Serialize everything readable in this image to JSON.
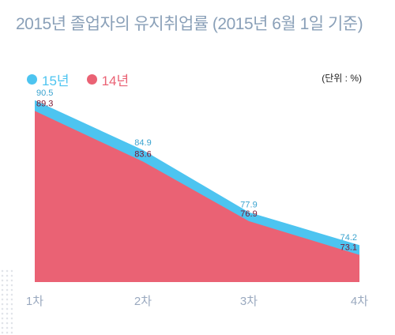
{
  "title": "2015년 졸업자의 유지취업률 (2015년 6월 1일 기준)",
  "unit_label": "(단위 : %)",
  "colors": {
    "series_15": "#4dc4f0",
    "series_14": "#ea6274",
    "title": "#8aa0b8",
    "axis_text": "#9aa9bf"
  },
  "legend": [
    {
      "name": "15년",
      "color": "#4dc4f0"
    },
    {
      "name": "14년",
      "color": "#ea6274"
    }
  ],
  "chart_data": {
    "type": "area",
    "title": "2015년 졸업자의 유지취업률 (2015년 6월 1일 기준)",
    "categories": [
      "1차",
      "2차",
      "3차",
      "4차"
    ],
    "series": [
      {
        "name": "15년",
        "values": [
          90.5,
          84.9,
          77.9,
          74.2
        ]
      },
      {
        "name": "14년",
        "values": [
          89.3,
          83.6,
          76.9,
          73.1
        ]
      }
    ],
    "ylim": [
      68,
      92
    ],
    "grid": false,
    "legend_position": "top-left"
  }
}
